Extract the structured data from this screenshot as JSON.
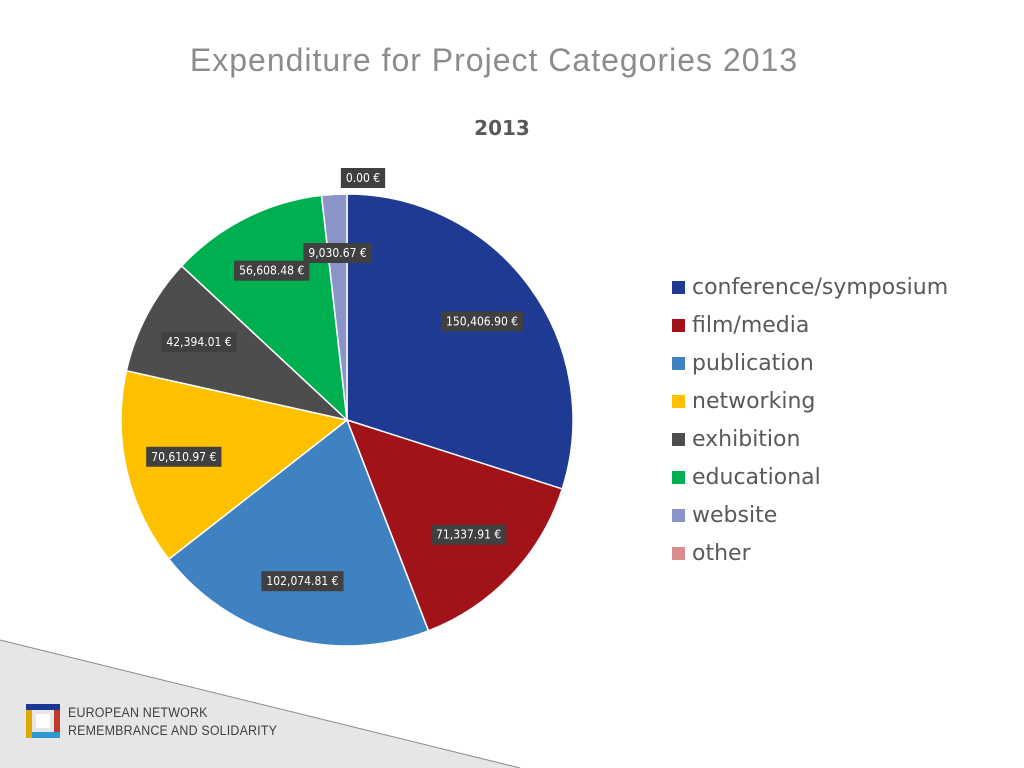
{
  "slide": {
    "title": "Expenditure for Project Categories 2013"
  },
  "footer": {
    "org_line_1": "EUROPEAN NETWORK",
    "org_line_2": "REMEMBRANCE AND SOLIDARITY",
    "logo_colors": [
      "#1b3893",
      "#e0a800",
      "#2b9ad3",
      "#c0392b"
    ]
  },
  "chart_data": {
    "type": "pie",
    "title": "2013",
    "legend_position": "right",
    "series": [
      {
        "name": "conference/symposium",
        "value": 150406.9,
        "label": "150,406.90 €",
        "color": "#1f3a93"
      },
      {
        "name": "film/media",
        "value": 71337.91,
        "label": "71,337.91 €",
        "color": "#a11219"
      },
      {
        "name": "publication",
        "value": 102074.81,
        "label": "102,074.81 €",
        "color": "#3f82c2"
      },
      {
        "name": "networking",
        "value": 70610.97,
        "label": "70,610.97 €",
        "color": "#ffc000"
      },
      {
        "name": "exhibition",
        "value": 42394.01,
        "label": "42,394.01 €",
        "color": "#4d4d4d"
      },
      {
        "name": "educational",
        "value": 56608.48,
        "label": "56,608.48 €",
        "color": "#00b050"
      },
      {
        "name": "website",
        "value": 9030.67,
        "label": "9,030.67 €",
        "color": "#8b94c8"
      },
      {
        "name": "other",
        "value": 0.0,
        "label": "0.00 €",
        "color": "#d98b8f"
      }
    ]
  }
}
